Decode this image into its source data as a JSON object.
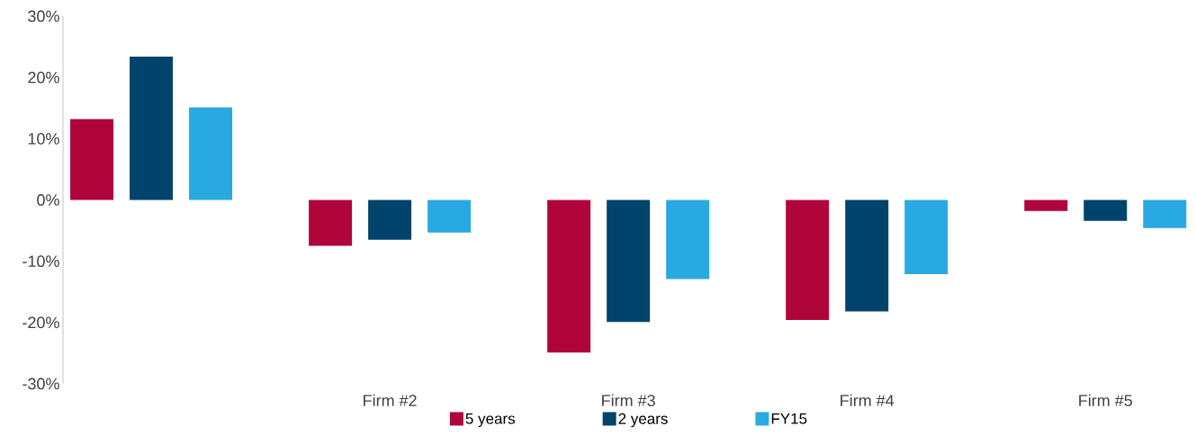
{
  "chart_data": {
    "type": "bar",
    "categories": [
      null,
      "Firm #2",
      "Firm #3",
      "Firm #4",
      "Firm #5"
    ],
    "series": [
      {
        "name": "5 years",
        "color": "#b0053a",
        "values": [
          13.2,
          -7.5,
          -24.9,
          -19.6,
          -1.8
        ]
      },
      {
        "name": "2 years",
        "color": "#00436b",
        "values": [
          23.4,
          -6.5,
          -19.9,
          -18.2,
          -3.4
        ]
      },
      {
        "name": "FY15",
        "color": "#29a9e1",
        "values": [
          15.1,
          -5.3,
          -12.9,
          -12.1,
          -4.6
        ]
      }
    ],
    "ylim": [
      -30,
      30
    ],
    "yticks": [
      {
        "value": -30,
        "label": "-30%"
      },
      {
        "value": -20,
        "label": "-20%"
      },
      {
        "value": -10,
        "label": "-10%"
      },
      {
        "value": 0,
        "label": "0%"
      },
      {
        "value": 10,
        "label": "10%"
      },
      {
        "value": 20,
        "label": "20%"
      },
      {
        "value": 30,
        "label": "30%"
      }
    ],
    "legend": "bottom"
  }
}
